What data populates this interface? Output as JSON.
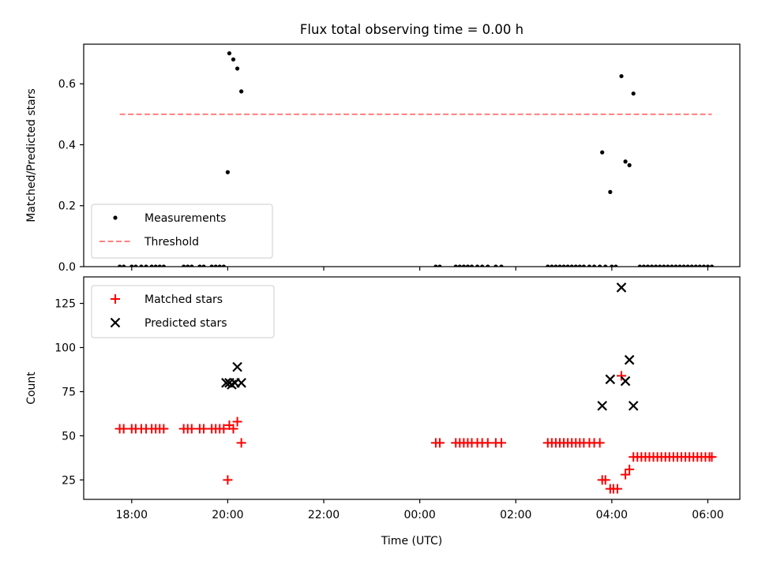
{
  "chart_data": [
    {
      "type": "scatter",
      "title": "Flux total observing time = 0.00 h",
      "xlabel": "",
      "ylabel": "Matched/Predicted stars",
      "xlim": [
        "17:00",
        "06:40"
      ],
      "ylim": [
        0,
        0.73
      ],
      "yticks": [
        "0.0",
        "0.2",
        "0.4",
        "0.6"
      ],
      "legend_placement": "lower-left",
      "series": [
        {
          "name": "Measurements",
          "marker": "dot",
          "color": "#000000",
          "points": [
            [
              "17:45",
              0
            ],
            [
              "17:50",
              0
            ],
            [
              "18:00",
              0
            ],
            [
              "18:05",
              0
            ],
            [
              "18:12",
              0
            ],
            [
              "18:18",
              0
            ],
            [
              "18:25",
              0
            ],
            [
              "18:30",
              0
            ],
            [
              "18:35",
              0
            ],
            [
              "18:40",
              0
            ],
            [
              "19:05",
              0
            ],
            [
              "19:10",
              0
            ],
            [
              "19:15",
              0
            ],
            [
              "19:25",
              0
            ],
            [
              "19:30",
              0
            ],
            [
              "19:40",
              0
            ],
            [
              "19:45",
              0
            ],
            [
              "19:50",
              0
            ],
            [
              "19:55",
              0
            ],
            [
              "20:00",
              0.31
            ],
            [
              "20:02",
              0.7
            ],
            [
              "20:07",
              0.68
            ],
            [
              "20:12",
              0.65
            ],
            [
              "20:17",
              0.575
            ],
            [
              "00:20",
              0
            ],
            [
              "00:25",
              0
            ],
            [
              "00:45",
              0
            ],
            [
              "00:50",
              0
            ],
            [
              "00:55",
              0
            ],
            [
              "01:00",
              0
            ],
            [
              "01:05",
              0
            ],
            [
              "01:12",
              0
            ],
            [
              "01:18",
              0
            ],
            [
              "01:25",
              0
            ],
            [
              "01:35",
              0
            ],
            [
              "01:42",
              0
            ],
            [
              "02:40",
              0
            ],
            [
              "02:45",
              0
            ],
            [
              "02:50",
              0
            ],
            [
              "02:55",
              0
            ],
            [
              "03:00",
              0
            ],
            [
              "03:05",
              0
            ],
            [
              "03:10",
              0
            ],
            [
              "03:15",
              0
            ],
            [
              "03:20",
              0
            ],
            [
              "03:25",
              0
            ],
            [
              "03:32",
              0
            ],
            [
              "03:38",
              0
            ],
            [
              "03:45",
              0
            ],
            [
              "03:52",
              0
            ],
            [
              "04:00",
              0
            ],
            [
              "04:05",
              0
            ],
            [
              "03:48",
              0.375
            ],
            [
              "03:58",
              0.245
            ],
            [
              "04:12",
              0.625
            ],
            [
              "04:17",
              0.345
            ],
            [
              "04:22",
              0.333
            ],
            [
              "04:27",
              0.568
            ],
            [
              "04:35",
              0
            ],
            [
              "04:40",
              0
            ],
            [
              "04:45",
              0
            ],
            [
              "04:50",
              0
            ],
            [
              "04:55",
              0
            ],
            [
              "05:00",
              0
            ],
            [
              "05:05",
              0
            ],
            [
              "05:10",
              0
            ],
            [
              "05:15",
              0
            ],
            [
              "05:20",
              0
            ],
            [
              "05:25",
              0
            ],
            [
              "05:30",
              0
            ],
            [
              "05:35",
              0
            ],
            [
              "05:40",
              0
            ],
            [
              "05:45",
              0
            ],
            [
              "05:50",
              0
            ],
            [
              "05:55",
              0
            ],
            [
              "06:00",
              0
            ],
            [
              "06:05",
              0
            ]
          ]
        },
        {
          "name": "Threshold",
          "type": "line",
          "style": "dashed",
          "color": "#ff7f7f",
          "points": [
            [
              "17:45",
              0.5
            ],
            [
              "06:05",
              0.5
            ]
          ]
        }
      ]
    },
    {
      "type": "scatter",
      "title": "",
      "xlabel": "Time (UTC)",
      "ylabel": "Count",
      "xlim": [
        "17:00",
        "06:40"
      ],
      "ylim": [
        14,
        140
      ],
      "yticks": [
        "25",
        "50",
        "75",
        "100",
        "125"
      ],
      "xticks": [
        "18:00",
        "20:00",
        "22:00",
        "00:00",
        "02:00",
        "04:00",
        "06:00"
      ],
      "legend_placement": "upper-left",
      "series": [
        {
          "name": "Matched stars",
          "marker": "plus",
          "color": "#ff0000",
          "points": [
            [
              "17:45",
              54
            ],
            [
              "17:50",
              54
            ],
            [
              "18:00",
              54
            ],
            [
              "18:05",
              54
            ],
            [
              "18:12",
              54
            ],
            [
              "18:18",
              54
            ],
            [
              "18:25",
              54
            ],
            [
              "18:30",
              54
            ],
            [
              "18:35",
              54
            ],
            [
              "18:40",
              54
            ],
            [
              "19:05",
              54
            ],
            [
              "19:10",
              54
            ],
            [
              "19:15",
              54
            ],
            [
              "19:25",
              54
            ],
            [
              "19:30",
              54
            ],
            [
              "19:40",
              54
            ],
            [
              "19:45",
              54
            ],
            [
              "19:50",
              54
            ],
            [
              "19:55",
              54
            ],
            [
              "20:00",
              25
            ],
            [
              "20:02",
              56
            ],
            [
              "20:07",
              54
            ],
            [
              "20:12",
              58
            ],
            [
              "20:17",
              46
            ],
            [
              "00:20",
              46
            ],
            [
              "00:25",
              46
            ],
            [
              "00:45",
              46
            ],
            [
              "00:50",
              46
            ],
            [
              "00:55",
              46
            ],
            [
              "01:00",
              46
            ],
            [
              "01:05",
              46
            ],
            [
              "01:12",
              46
            ],
            [
              "01:18",
              46
            ],
            [
              "01:25",
              46
            ],
            [
              "01:35",
              46
            ],
            [
              "01:42",
              46
            ],
            [
              "02:40",
              46
            ],
            [
              "02:45",
              46
            ],
            [
              "02:50",
              46
            ],
            [
              "02:55",
              46
            ],
            [
              "03:00",
              46
            ],
            [
              "03:05",
              46
            ],
            [
              "03:10",
              46
            ],
            [
              "03:15",
              46
            ],
            [
              "03:20",
              46
            ],
            [
              "03:25",
              46
            ],
            [
              "03:32",
              46
            ],
            [
              "03:38",
              46
            ],
            [
              "03:45",
              46
            ],
            [
              "03:48",
              25
            ],
            [
              "03:52",
              25
            ],
            [
              "03:58",
              20
            ],
            [
              "04:02",
              20
            ],
            [
              "04:07",
              20
            ],
            [
              "04:12",
              84
            ],
            [
              "04:17",
              28
            ],
            [
              "04:22",
              31
            ],
            [
              "04:27",
              38
            ],
            [
              "04:32",
              38
            ],
            [
              "04:37",
              38
            ],
            [
              "04:42",
              38
            ],
            [
              "04:47",
              38
            ],
            [
              "04:52",
              38
            ],
            [
              "04:57",
              38
            ],
            [
              "05:02",
              38
            ],
            [
              "05:07",
              38
            ],
            [
              "05:12",
              38
            ],
            [
              "05:17",
              38
            ],
            [
              "05:22",
              38
            ],
            [
              "05:27",
              38
            ],
            [
              "05:32",
              38
            ],
            [
              "05:37",
              38
            ],
            [
              "05:42",
              38
            ],
            [
              "05:47",
              38
            ],
            [
              "05:52",
              38
            ],
            [
              "05:57",
              38
            ],
            [
              "06:02",
              38
            ],
            [
              "06:05",
              38
            ]
          ]
        },
        {
          "name": "Predicted stars",
          "marker": "x",
          "color": "#000000",
          "points": [
            [
              "19:58",
              80
            ],
            [
              "20:02",
              80
            ],
            [
              "20:05",
              79
            ],
            [
              "20:09",
              80
            ],
            [
              "20:12",
              89
            ],
            [
              "20:17",
              80
            ],
            [
              "03:48",
              67
            ],
            [
              "03:58",
              82
            ],
            [
              "04:12",
              134
            ],
            [
              "04:17",
              81
            ],
            [
              "04:22",
              93
            ],
            [
              "04:27",
              67
            ]
          ]
        }
      ]
    }
  ]
}
